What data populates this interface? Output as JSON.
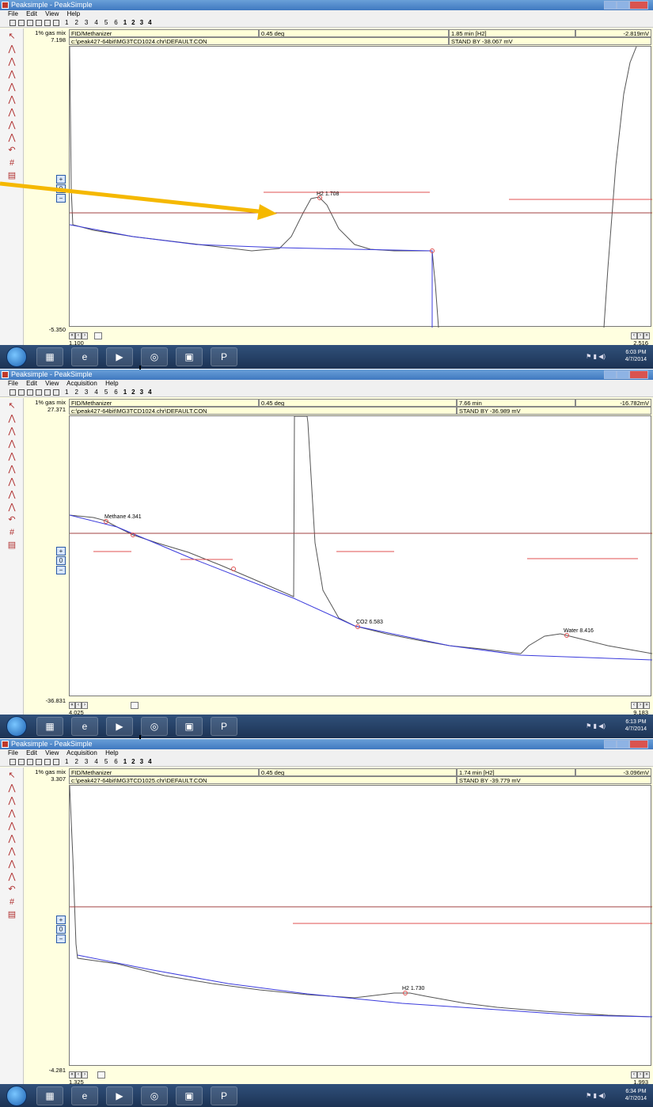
{
  "app_title": "Peaksimple - PeakSimple",
  "menu_items": [
    "File",
    "Edit",
    "View",
    "Acquisition",
    "Help"
  ],
  "toolbar_numbers": [
    "1",
    "2",
    "3",
    "4",
    "5",
    "6"
  ],
  "toolbar_channels": [
    "1",
    "2",
    "3",
    "4"
  ],
  "colors": {
    "background": "#ffffe0",
    "trace": "#555555",
    "baseline": "#3b3bdc",
    "peak_window": "#e05050",
    "threshold": "#a04040",
    "annotation_arrow": "#f5b800"
  },
  "panels": [
    {
      "sample": "1% gas mix",
      "detector": "FID/Methanizer",
      "angle": "0.45 deg",
      "time_info": "1.85 min [H2]",
      "status": "STAND BY -38.067 mV",
      "reading": "-2.819mV",
      "file": "c:\\peak427-64bit\\MG3TCD1024.chr\\DEFAULT.CON",
      "y_max": "7.198",
      "y_min": "-5.350",
      "x_min": "1.100",
      "x_max": "2.516",
      "clock_time": "6:03 PM",
      "clock_date": "4/7/2014",
      "peaks": [
        {
          "label": "H2 1.708"
        }
      ]
    },
    {
      "sample": "1% gas mix",
      "detector": "FID/Methanizer",
      "angle": "0.45 deg",
      "time_info": "7.66 min",
      "status": "STAND BY -36.989 mV",
      "reading": "-16.782mV",
      "file": "c:\\peak427-64bit\\MG3TCD1024.chr\\DEFAULT.CON",
      "y_max": "27.371",
      "y_min": "-36.831",
      "x_min": "4.025",
      "x_max": "9.183",
      "clock_time": "6:13 PM",
      "clock_date": "4/7/2014",
      "peaks": [
        {
          "label": "Methane 4.341"
        },
        {
          "label": "CO2 6.583"
        },
        {
          "label": "Water 8.416"
        }
      ]
    },
    {
      "sample": "1% gas mix",
      "detector": "FID/Methanizer",
      "angle": "0.45 deg",
      "time_info": "1.74 min [H2]",
      "status": "STAND BY -39.779 mV",
      "reading": "-3.096mV",
      "file": "c:\\peak427-64bit\\MG3TCD1025.chr\\DEFAULT.CON",
      "y_max": "3.307",
      "y_min": "-4.281",
      "x_min": "1.325",
      "x_max": "1.993",
      "clock_time": "6:34 PM",
      "clock_date": "4/7/2014",
      "peaks": [
        {
          "label": "H2 1.730"
        }
      ]
    }
  ]
}
